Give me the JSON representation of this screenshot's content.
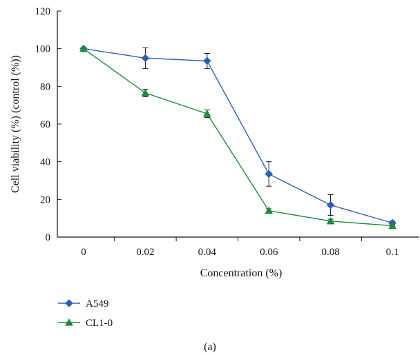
{
  "chart_data": {
    "type": "line",
    "categories": [
      "0",
      "0.02",
      "0.04",
      "0.06",
      "0.08",
      "0.1"
    ],
    "xlabel": "Concentration (%)",
    "ylabel": "Cell viability (%) (control (%))",
    "ylim": [
      0,
      120
    ],
    "yticks": [
      "0",
      "20",
      "40",
      "60",
      "80",
      "100",
      "120"
    ],
    "grid": false,
    "legend_position": "bottom-left",
    "panel_label": "(a)",
    "series": [
      {
        "name": "A549",
        "color": "#2b5fb4",
        "marker": "diamond",
        "values": [
          100,
          95,
          93.5,
          33.5,
          17,
          7.5
        ],
        "error": [
          0,
          5.5,
          4,
          6.5,
          5.5,
          1
        ]
      },
      {
        "name": "CL1-0",
        "color": "#1f8a3c",
        "marker": "triangle",
        "values": [
          100,
          76.5,
          65.5,
          14,
          8.5,
          6
        ],
        "error": [
          0,
          2,
          2,
          1,
          1,
          0.5
        ]
      }
    ]
  }
}
